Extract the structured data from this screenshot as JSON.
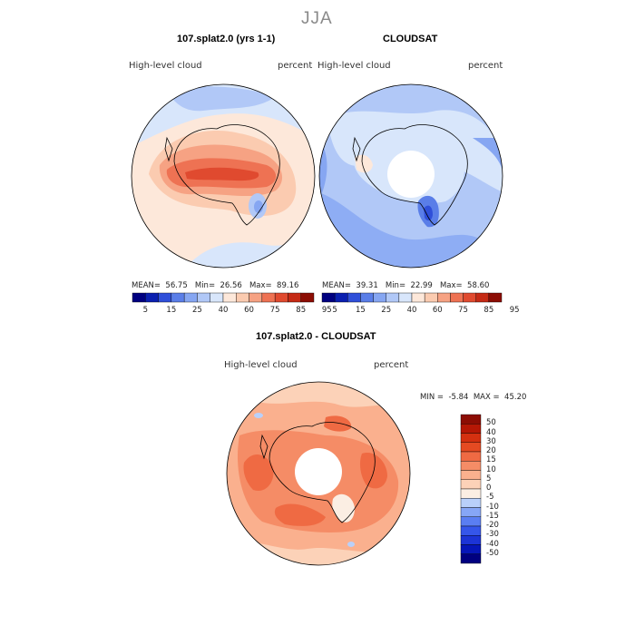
{
  "figure": {
    "season": "JJA"
  },
  "chart_data": [
    {
      "type": "heatmap",
      "title": "107.splat2.0 (yrs 1-1)",
      "subtitle_left": "High-level cloud",
      "subtitle_right": "percent",
      "projection": "south-polar-stereographic",
      "stats": {
        "mean_label": "MEAN=",
        "mean": "56.75",
        "min_label": "Min=",
        "min": "26.56",
        "max_label": "Max=",
        "max": "89.16"
      },
      "colorbar": {
        "colors": [
          "#000080",
          "#0a1fb0",
          "#2f4fd9",
          "#5a7ee8",
          "#86a6f2",
          "#b1c8f7",
          "#d8e6fb",
          "#fde8da",
          "#fbcbb0",
          "#f6a283",
          "#ee7253",
          "#e04a2f",
          "#c52a15",
          "#8c0d04"
        ],
        "labels": [
          "5",
          "15",
          "25",
          "40",
          "60",
          "75",
          "85",
          "95"
        ]
      }
    },
    {
      "type": "heatmap",
      "title": "CLOUDSAT",
      "subtitle_left": "High-level cloud",
      "subtitle_right": "percent",
      "projection": "south-polar-stereographic",
      "stats": {
        "mean_label": "MEAN=",
        "mean": "39.31",
        "min_label": "Min=",
        "min": "22.99",
        "max_label": "Max=",
        "max": "58.60"
      },
      "colorbar": {
        "colors": [
          "#000080",
          "#0a1fb0",
          "#2f4fd9",
          "#5a7ee8",
          "#86a6f2",
          "#b1c8f7",
          "#d8e6fb",
          "#fde8da",
          "#fbcbb0",
          "#f6a283",
          "#ee7253",
          "#e04a2f",
          "#c52a15",
          "#8c0d04"
        ],
        "labels": [
          "5",
          "15",
          "25",
          "40",
          "60",
          "75",
          "85",
          "95"
        ]
      }
    },
    {
      "type": "heatmap",
      "title": "107.splat2.0 - CLOUDSAT",
      "subtitle_left": "High-level cloud",
      "subtitle_right": "percent",
      "projection": "south-polar-stereographic",
      "stats": {
        "min_label": "MIN =",
        "min": "-5.84",
        "max_label": "MAX =",
        "max": "45.20"
      },
      "colorbar": {
        "colors": [
          "#000080",
          "#0616b8",
          "#1c34d6",
          "#3556ea",
          "#5a7ef2",
          "#86a6f6",
          "#b9d0fa",
          "#fbeee3",
          "#fcd2b8",
          "#fab08e",
          "#f58c66",
          "#ef6a43",
          "#e54a22",
          "#d43010",
          "#b51705",
          "#8c0d04"
        ],
        "labels": [
          "50",
          "40",
          "30",
          "20",
          "15",
          "10",
          "5",
          "0",
          "-5",
          "-10",
          "-15",
          "-20",
          "-30",
          "-40",
          "-50"
        ]
      }
    }
  ]
}
